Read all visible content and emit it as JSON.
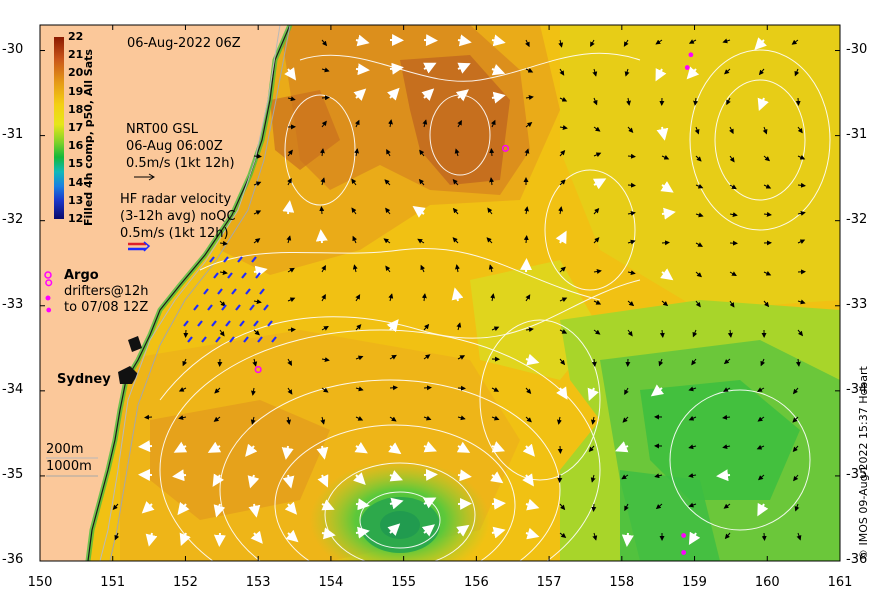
{
  "map": {
    "timestamp": "06-Aug-2022 06Z",
    "credit": "© IMOS 09-Aug-2022 15:37 Hobart",
    "x_axis": {
      "min": 150,
      "max": 161,
      "ticks": [
        "150",
        "151",
        "152",
        "153",
        "154",
        "155",
        "156",
        "157",
        "158",
        "159",
        "160",
        "161"
      ]
    },
    "y_axis": {
      "min": -36,
      "max": -29.7,
      "ticks": [
        "-30",
        "-31",
        "-32",
        "-33",
        "-34",
        "-35",
        "-36"
      ]
    },
    "colors": {
      "land": "#fbc89a",
      "contour": "#ffffff",
      "radar_arrow": "#1f2bff",
      "drifter": "#ff00ff"
    }
  },
  "colorbar": {
    "title": "Filled 4h comp, p50, All Sats",
    "labels": [
      "22",
      "21",
      "20",
      "19",
      "18",
      "17",
      "16",
      "15",
      "14",
      "13",
      "12"
    ]
  },
  "legend": {
    "gsl_line1": "NRT00 GSL",
    "gsl_line2": "06-Aug 06:00Z",
    "gsl_line3": "0.5m/s (1kt 12h)",
    "radar_line1": "HF radar velocity",
    "radar_line2": "(3-12h avg) noQC",
    "radar_line3": "0.5m/s (1kt 12h)",
    "argo": "Argo",
    "drifters_line1": "drifters@12h",
    "drifters_line2": "to 07/08 12Z",
    "depth_200": "200m",
    "depth_1000": "1000m"
  },
  "places": {
    "sydney": "Sydney"
  },
  "argo_floats": [
    {
      "lon": 156.4,
      "lat": -31.15
    },
    {
      "lon": 153.0,
      "lat": -33.75
    },
    {
      "lon": 150.12,
      "lat": -32.73
    }
  ],
  "drifter_points": [
    {
      "lon": 158.95,
      "lat": -30.05
    },
    {
      "lon": 158.9,
      "lat": -30.2
    },
    {
      "lon": 158.85,
      "lat": -35.7
    },
    {
      "lon": 158.85,
      "lat": -35.9
    },
    {
      "lon": 150.12,
      "lat": -33.05
    }
  ]
}
